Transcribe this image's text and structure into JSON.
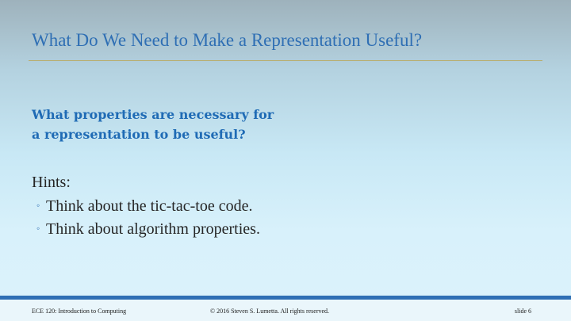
{
  "slide": {
    "title": "What Do We Need to Make a Representation Useful?",
    "question_lines": [
      "What properties are necessary for",
      "a representation to be useful?"
    ],
    "hints_heading": "Hints:",
    "hints": [
      "Think about the tic-tac-toe code.",
      "Think about algorithm properties."
    ],
    "bullet_glyph": "◦"
  },
  "footer": {
    "course": "ECE 120: Introduction to Computing",
    "copyright": "© 2016 Steven S. Lumetta.  All rights reserved.",
    "slide_number": "slide 6"
  },
  "colors": {
    "title": "#2f6fb4",
    "question": "#1f6bb5",
    "rule": "#b8ad6c",
    "footer_bar": "#2f6fb4"
  }
}
